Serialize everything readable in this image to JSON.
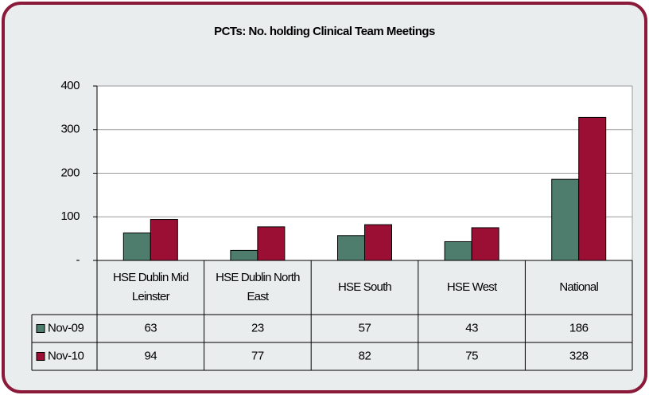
{
  "chart_data": {
    "type": "bar",
    "title": "PCTs: No. holding Clinical Team Meetings",
    "categories": [
      "HSE Dublin Mid Leinster",
      "HSE Dublin North East",
      "HSE South",
      "HSE West",
      "National"
    ],
    "series": [
      {
        "name": "Nov-09",
        "color": "#4e7d6e",
        "values": [
          63,
          23,
          57,
          43,
          186
        ]
      },
      {
        "name": "Nov-10",
        "color": "#9b0f35",
        "values": [
          94,
          77,
          82,
          75,
          328
        ]
      }
    ],
    "ylim": [
      0,
      400
    ],
    "yticks": [
      {
        "value": 0,
        "label": "-"
      },
      100,
      200,
      300,
      400
    ],
    "grid": true
  }
}
